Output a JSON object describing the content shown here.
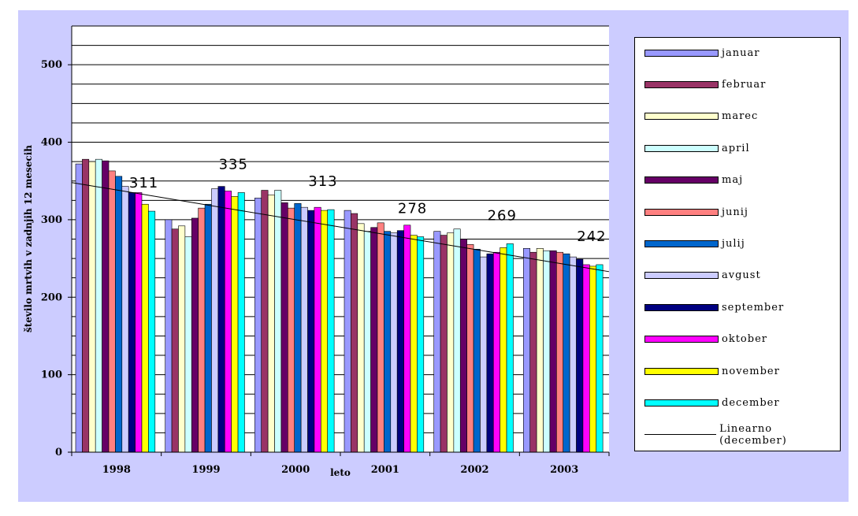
{
  "chart_data": {
    "type": "bar",
    "title": "",
    "xlabel": "leto",
    "ylabel": "število mrtvih v zadnjih 12 mesecih",
    "ylim": [
      0,
      550
    ],
    "yticks": [
      "0",
      "100",
      "200",
      "300",
      "400",
      "500"
    ],
    "grid": true,
    "legend_position": "right",
    "categories": [
      "1998",
      "1999",
      "2000",
      "2001",
      "2002",
      "2003"
    ],
    "series": [
      {
        "name": "januar",
        "color": "#9999ff",
        "values": [
          372,
          300,
          328,
          312,
          285,
          263
        ]
      },
      {
        "name": "februar",
        "color": "#993366",
        "values": [
          378,
          288,
          338,
          308,
          280,
          258
        ]
      },
      {
        "name": "marec",
        "color": "#ffffcc",
        "values": [
          375,
          292,
          332,
          295,
          283,
          263
        ]
      },
      {
        "name": "april",
        "color": "#ccffff",
        "values": [
          378,
          278,
          338,
          285,
          288,
          260
        ]
      },
      {
        "name": "maj",
        "color": "#660066",
        "values": [
          376,
          302,
          322,
          290,
          275,
          260
        ]
      },
      {
        "name": "junij",
        "color": "#ff8080",
        "values": [
          363,
          315,
          315,
          296,
          268,
          258
        ]
      },
      {
        "name": "julij",
        "color": "#0066cc",
        "values": [
          356,
          320,
          321,
          285,
          262,
          256
        ]
      },
      {
        "name": "avgust",
        "color": "#ccccff",
        "values": [
          343,
          340,
          316,
          283,
          252,
          252
        ]
      },
      {
        "name": "september",
        "color": "#000080",
        "values": [
          335,
          343,
          312,
          286,
          256,
          249
        ]
      },
      {
        "name": "oktober",
        "color": "#ff00ff",
        "values": [
          335,
          337,
          316,
          293,
          258,
          242
        ]
      },
      {
        "name": "november",
        "color": "#ffff00",
        "values": [
          320,
          330,
          312,
          280,
          264,
          240
        ]
      },
      {
        "name": "december",
        "color": "#00ffff",
        "values": [
          311,
          335,
          313,
          278,
          269,
          242
        ]
      }
    ],
    "trendline": {
      "name": "Linearno (december)",
      "start": 348,
      "end": 233,
      "color": "#000000"
    },
    "data_labels": [
      "311",
      "335",
      "313",
      "278",
      "269",
      "242"
    ]
  }
}
